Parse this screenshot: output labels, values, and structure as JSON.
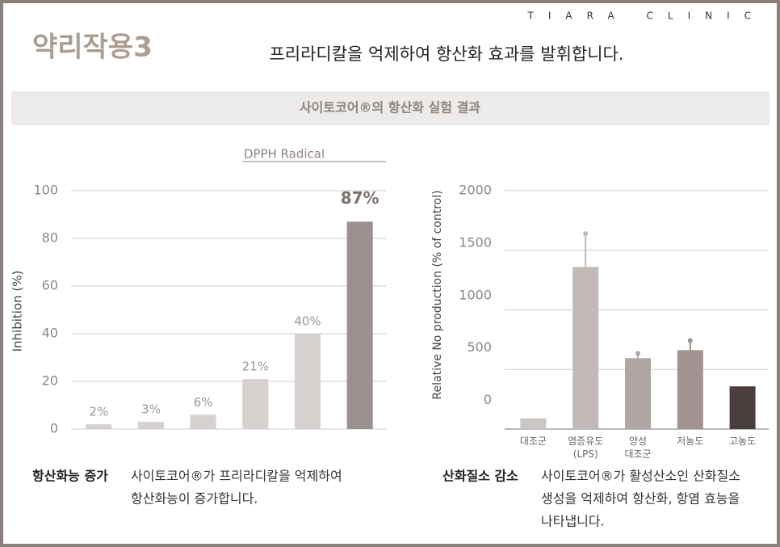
{
  "header": {
    "brand": "TIARA CLINIC",
    "title": "약리작용3",
    "subtitle": "프리라디칼을 억제하여 항산화 효과를 발휘합니다.",
    "banner": "사이토코어®의 항산화 실험 결과"
  },
  "chart_data": [
    {
      "type": "bar",
      "title": "DPPH Radical",
      "y_label": "Inhibition (%)",
      "categories": [
        null,
        null,
        null,
        null,
        null,
        null
      ],
      "values": [
        2,
        3,
        6,
        21,
        40,
        87
      ],
      "value_labels": [
        "2%",
        "3%",
        "6%",
        "21%",
        "40%",
        "87%"
      ],
      "colors": [
        "#d6d1cf",
        "#d6d1cf",
        "#d6d1cf",
        "#d6d1cf",
        "#d6d1cf",
        "#9b908d"
      ],
      "ylim": [
        0,
        100
      ],
      "yticks": [
        0,
        20,
        40,
        60,
        80,
        100
      ],
      "grid": true
    },
    {
      "type": "bar",
      "y_label": "Relative No production (% of control)",
      "categories": [
        [
          "대조군"
        ],
        [
          "염증유도",
          "(LPS)"
        ],
        [
          "양성",
          "대조군"
        ],
        [
          "저농도"
        ],
        [
          "고농도"
        ]
      ],
      "values": [
        90,
        1360,
        595,
        662,
        358
      ],
      "errors": [
        null,
        280,
        40,
        80,
        null
      ],
      "colors": [
        "#cbc6c4",
        "#c1b9b7",
        "#b0a7a5",
        "#a1938f",
        "#4a3f3d"
      ],
      "ylim": [
        0,
        2000
      ],
      "yticks": [
        0,
        500,
        1000,
        1500,
        2000
      ],
      "grid": true
    }
  ],
  "captions": [
    {
      "title": "항산화능 증가",
      "lines": [
        "사이토코어®가 프리라디칼을 억제하여",
        "항산화능이 증가합니다."
      ]
    },
    {
      "title": "산화질소 감소",
      "lines": [
        "사이토코어®가 활성산소인 산화질소",
        "생성을 억제하여 항산화, 항염 효능을",
        "나타냅니다."
      ]
    }
  ]
}
